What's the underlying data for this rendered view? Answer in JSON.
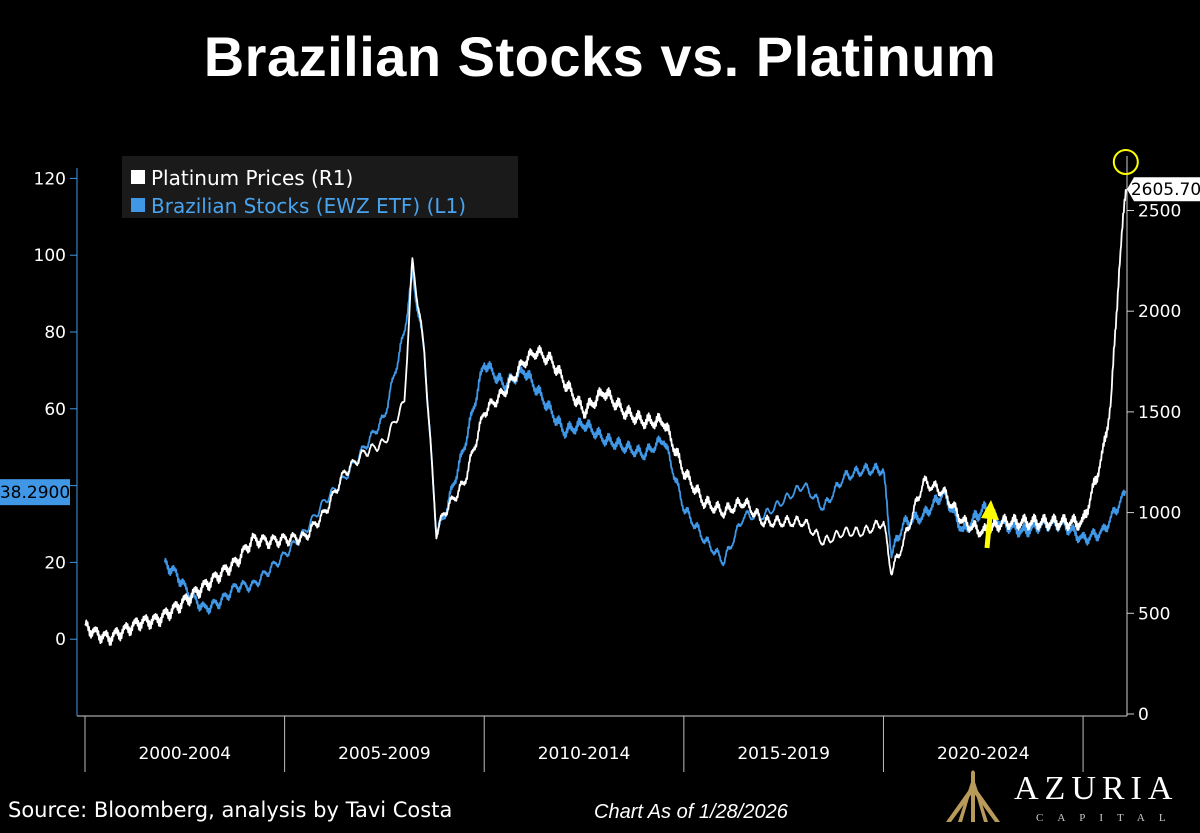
{
  "title": "Brazilian Stocks vs. Platinum",
  "footer": {
    "source": "Source: Bloomberg, analysis by Tavi Costa",
    "as_of": "Chart As of 1/28/2026"
  },
  "logo": {
    "name": "AZURIA",
    "sub": "CAPITAL"
  },
  "colors": {
    "platinum": "#ffffff",
    "ewz": "#3f97e6",
    "highlight": "#ffff00",
    "background": "#000000"
  },
  "chart_data": {
    "type": "line",
    "title": "Brazilian Stocks vs. Platinum",
    "legend": [
      "Platinum Prices (R1)",
      "Brazilian Stocks (EWZ ETF) (L1)"
    ],
    "legend_position": "top-left",
    "grid": false,
    "x_range": [
      1999.8,
      2026.1
    ],
    "x_ticks": [
      2000,
      2005,
      2010,
      2015,
      2020,
      2025
    ],
    "x_tick_labels": [
      "2000-2004",
      "2005-2009",
      "2010-2014",
      "2015-2019",
      "2020-2024"
    ],
    "left_axis": {
      "ylim": [
        -20,
        130
      ],
      "ticks": [
        0,
        20,
        40,
        60,
        80,
        100,
        120
      ],
      "tick_labels": [
        "0",
        "20",
        "",
        "60",
        "80",
        "100",
        "120"
      ],
      "last_value_label": "38.2900",
      "last_value": 38.29
    },
    "right_axis": {
      "ylim": [
        -10,
        2850
      ],
      "ticks": [
        0,
        500,
        1000,
        1500,
        2000,
        2500
      ],
      "tick_labels": [
        "0",
        "500",
        "1000",
        "1500",
        "2000",
        "2500"
      ],
      "last_value_label": "2605.70",
      "last_value": 2605.7
    },
    "series": [
      {
        "name": "Platinum Prices (R1)",
        "axis": "right",
        "x": [
          2000.0,
          2000.3,
          2000.6,
          2001.0,
          2001.4,
          2001.8,
          2002.2,
          2002.6,
          2003.0,
          2003.4,
          2003.8,
          2004.2,
          2004.6,
          2005.0,
          2005.5,
          2006.0,
          2006.5,
          2007.0,
          2007.5,
          2008.0,
          2008.2,
          2008.5,
          2008.8,
          2009.0,
          2009.5,
          2010.0,
          2010.5,
          2011.0,
          2011.3,
          2011.7,
          2012.0,
          2012.5,
          2013.0,
          2013.5,
          2014.0,
          2014.5,
          2015.0,
          2015.5,
          2016.0,
          2016.5,
          2017.0,
          2017.5,
          2018.0,
          2018.5,
          2019.0,
          2019.5,
          2020.0,
          2020.2,
          2020.5,
          2021.0,
          2021.5,
          2022.0,
          2022.5,
          2023.0,
          2023.5,
          2024.0,
          2024.5,
          2025.0,
          2025.3,
          2025.5,
          2025.7,
          2025.9,
          2026.07
        ],
        "values": [
          440,
          400,
          380,
          420,
          460,
          470,
          520,
          580,
          640,
          700,
          760,
          870,
          860,
          870,
          880,
          1000,
          1200,
          1300,
          1350,
          1550,
          2250,
          1800,
          900,
          1000,
          1150,
          1500,
          1600,
          1750,
          1800,
          1750,
          1650,
          1500,
          1600,
          1500,
          1450,
          1450,
          1200,
          1050,
          1000,
          1050,
          950,
          950,
          950,
          850,
          900,
          900,
          950,
          700,
          850,
          1150,
          1100,
          950,
          900,
          950,
          950,
          950,
          950,
          950,
          1150,
          1300,
          1550,
          2200,
          2605.7
        ]
      },
      {
        "name": "Brazilian Stocks (EWZ ETF) (L1)",
        "axis": "left",
        "x": [
          2002.0,
          2002.3,
          2002.6,
          2003.0,
          2003.4,
          2003.8,
          2004.2,
          2004.6,
          2005.0,
          2005.5,
          2006.0,
          2006.5,
          2007.0,
          2007.5,
          2008.0,
          2008.2,
          2008.5,
          2008.8,
          2009.0,
          2009.5,
          2010.0,
          2010.5,
          2011.0,
          2011.5,
          2012.0,
          2012.5,
          2013.0,
          2013.5,
          2014.0,
          2014.5,
          2015.0,
          2015.5,
          2016.0,
          2016.5,
          2017.0,
          2017.5,
          2018.0,
          2018.5,
          2019.0,
          2019.5,
          2020.0,
          2020.2,
          2020.5,
          2021.0,
          2021.5,
          2022.0,
          2022.5,
          2023.0,
          2023.5,
          2024.0,
          2024.5,
          2025.0,
          2025.5,
          2026.07
        ],
        "values": [
          20,
          17,
          12,
          8,
          10,
          14,
          14,
          18,
          22,
          28,
          36,
          42,
          50,
          58,
          80,
          95,
          75,
          28,
          32,
          50,
          72,
          66,
          70,
          62,
          54,
          56,
          52,
          50,
          48,
          52,
          34,
          26,
          20,
          32,
          32,
          36,
          40,
          34,
          42,
          44,
          44,
          22,
          30,
          32,
          38,
          28,
          34,
          30,
          28,
          30,
          30,
          26,
          28,
          38.29
        ]
      }
    ],
    "annotations": [
      "circle at latest platinum peak",
      "upward arrow next to latest EWZ value"
    ]
  }
}
